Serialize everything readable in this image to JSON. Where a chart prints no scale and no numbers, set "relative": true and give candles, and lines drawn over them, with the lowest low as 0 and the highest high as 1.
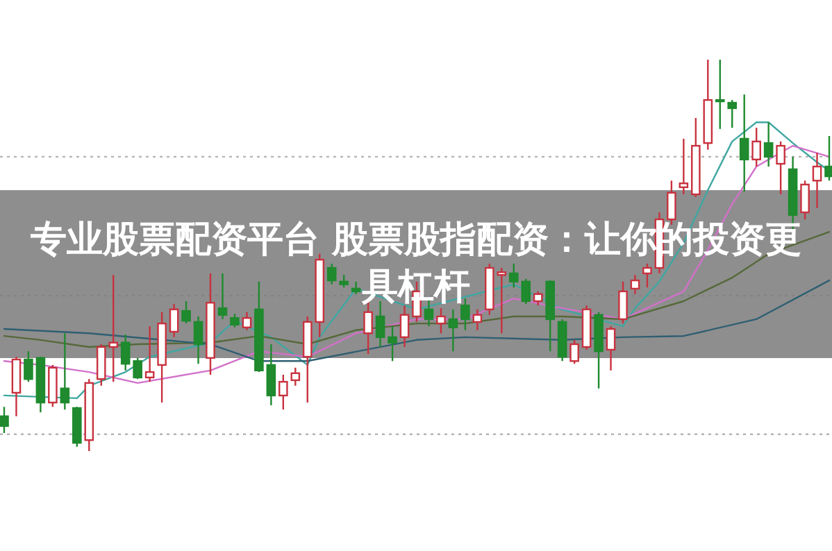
{
  "chart_data": {
    "type": "candlestick",
    "title": "专业股票配资平台 股票股指配资：让你的投资更具杠杆",
    "relative": true,
    "categories": [
      null,
      null,
      null,
      null,
      null,
      null,
      null,
      null,
      null,
      null,
      null,
      null,
      null,
      null,
      null,
      null,
      null,
      null,
      null,
      null,
      null,
      null,
      null,
      null,
      null,
      null,
      null,
      null,
      null,
      null,
      null,
      null,
      null,
      null,
      null,
      null,
      null,
      null,
      null,
      null,
      null,
      null,
      null,
      null,
      null,
      null,
      null,
      null,
      null,
      null,
      null,
      null,
      null,
      null,
      null,
      null,
      null,
      null,
      null,
      null,
      null,
      null,
      null,
      null,
      null,
      null,
      null,
      null,
      null
    ],
    "ohlc": [
      [
        0.089,
        0.113,
        0.046,
        0.064
      ],
      [
        0.149,
        0.241,
        0.089,
        0.234
      ],
      [
        0.234,
        0.255,
        0.177,
        0.184
      ],
      [
        0.238,
        0.241,
        0.099,
        0.124
      ],
      [
        0.124,
        0.22,
        0.113,
        0.213
      ],
      [
        0.16,
        0.301,
        0.106,
        0.124
      ],
      [
        0.11,
        0.113,
        0.011,
        0.021
      ],
      [
        0.028,
        0.184,
        0,
        0.174
      ],
      [
        0.184,
        0.273,
        0.167,
        0.266
      ],
      [
        0.266,
        0.45,
        0.177,
        0.277
      ],
      [
        0.277,
        0.298,
        0.206,
        0.223
      ],
      [
        0.23,
        0.238,
        0.184,
        0.188
      ],
      [
        0.188,
        0.319,
        0.177,
        0.202
      ],
      [
        0.22,
        0.355,
        0.124,
        0.326
      ],
      [
        0.305,
        0.376,
        0.291,
        0.362
      ],
      [
        0.358,
        0.383,
        0.326,
        0.333
      ],
      [
        0.33,
        0.344,
        0.223,
        0.273
      ],
      [
        0.238,
        0.454,
        0.195,
        0.379
      ],
      [
        0.365,
        0.454,
        0.337,
        0.348
      ],
      [
        0.34,
        0.351,
        0.316,
        0.323
      ],
      [
        0.316,
        0.355,
        0.309,
        0.34
      ],
      [
        0.362,
        0.433,
        0.202,
        0.206
      ],
      [
        0.22,
        0.273,
        0.117,
        0.142
      ],
      [
        0.142,
        0.195,
        0.106,
        0.177
      ],
      [
        0.181,
        0.213,
        0.167,
        0.199
      ],
      [
        0.241,
        0.344,
        0.124,
        0.33
      ],
      [
        0.33,
        0.504,
        0.291,
        0.489
      ],
      [
        0.468,
        0.479,
        0.426,
        0.436
      ],
      [
        0.433,
        0.45,
        0.418,
        0.426
      ],
      [
        0.415,
        0.433,
        0.401,
        0.408
      ],
      [
        0.301,
        0.39,
        0.248,
        0.355
      ],
      [
        0.344,
        0.383,
        0.266,
        0.291
      ],
      [
        0.291,
        0.319,
        0.23,
        0.277
      ],
      [
        0.291,
        0.372,
        0.266,
        0.348
      ],
      [
        0.344,
        0.433,
        0.33,
        0.408
      ],
      [
        0.362,
        0.39,
        0.319,
        0.337
      ],
      [
        0.326,
        0.365,
        0.301,
        0.344
      ],
      [
        0.337,
        0.362,
        0.255,
        0.316
      ],
      [
        0.372,
        0.39,
        0.309,
        0.337
      ],
      [
        0.33,
        0.362,
        0.309,
        0.348
      ],
      [
        0.362,
        0.479,
        0.348,
        0.468
      ],
      [
        0.45,
        0.468,
        0.301,
        0.457
      ],
      [
        0.454,
        0.479,
        0.418,
        0.433
      ],
      [
        0.433,
        0.44,
        0.376,
        0.383
      ],
      [
        0.383,
        0.408,
        0.372,
        0.401
      ],
      [
        0.433,
        0.436,
        0.255,
        0.337
      ],
      [
        0.33,
        0.337,
        0.23,
        0.241
      ],
      [
        0.23,
        0.284,
        0.223,
        0.273
      ],
      [
        0.266,
        0.372,
        0.259,
        0.362
      ],
      [
        0.348,
        0.355,
        0.16,
        0.255
      ],
      [
        0.259,
        0.319,
        0.206,
        0.312
      ],
      [
        0.337,
        0.433,
        0.326,
        0.408
      ],
      [
        0.415,
        0.45,
        0.401,
        0.436
      ],
      [
        0.454,
        0.479,
        0.418,
        0.468
      ],
      [
        0.468,
        0.61,
        0.454,
        0.592
      ],
      [
        0.592,
        0.691,
        0.578,
        0.66
      ],
      [
        0.674,
        0.798,
        0.656,
        0.684
      ],
      [
        0.656,
        0.851,
        0.649,
        0.78
      ],
      [
        0.787,
        1,
        0.77,
        0.897
      ],
      [
        0.897,
        1,
        0.823,
        0.894
      ],
      [
        0.89,
        0.897,
        0.826,
        0.876
      ],
      [
        0.798,
        0.911,
        0.663,
        0.745
      ],
      [
        0.745,
        0.826,
        0.727,
        0.791
      ],
      [
        0.787,
        0.84,
        0.727,
        0.752
      ],
      [
        0.734,
        0.791,
        0.656,
        0.78
      ],
      [
        0.72,
        0.752,
        0.56,
        0.603
      ],
      [
        0.61,
        0.691,
        0.592,
        0.681
      ],
      [
        0.691,
        0.762,
        0.621,
        0.727
      ],
      [
        0.727,
        0.805,
        0.691,
        0.702
      ]
    ],
    "colors": [
      "#1f8a2e",
      "#c8323f",
      "#1f8a2e",
      "#1f8a2e",
      "#c8323f",
      "#1f8a2e",
      "#1f8a2e",
      "#c8323f",
      "#c8323f",
      "#c8323f",
      "#1f8a2e",
      "#1f8a2e",
      "#c8323f",
      "#c8323f",
      "#c8323f",
      "#1f8a2e",
      "#1f8a2e",
      "#c8323f",
      "#1f8a2e",
      "#1f8a2e",
      "#c8323f",
      "#1f8a2e",
      "#1f8a2e",
      "#c8323f",
      "#c8323f",
      "#c8323f",
      "#c8323f",
      "#1f8a2e",
      "#1f8a2e",
      "#1f8a2e",
      "#c8323f",
      "#1f8a2e",
      "#1f8a2e",
      "#c8323f",
      "#c8323f",
      "#1f8a2e",
      "#c8323f",
      "#1f8a2e",
      "#1f8a2e",
      "#c8323f",
      "#c8323f",
      "#c8323f",
      "#1f8a2e",
      "#1f8a2e",
      "#c8323f",
      "#1f8a2e",
      "#1f8a2e",
      "#c8323f",
      "#c8323f",
      "#1f8a2e",
      "#c8323f",
      "#c8323f",
      "#c8323f",
      "#c8323f",
      "#c8323f",
      "#c8323f",
      "#c8323f",
      "#c8323f",
      "#c8323f",
      "#1f8a2e",
      "#1f8a2e",
      "#1f8a2e",
      "#c8323f",
      "#1f8a2e",
      "#c8323f",
      "#1f8a2e",
      "#c8323f",
      "#c8323f",
      "#1f8a2e"
    ],
    "series": [
      {
        "type": "line",
        "color": "#3fa7a2",
        "values": [
          0.142,
          null,
          null,
          null,
          null,
          null,
          0.135,
          0.167,
          null,
          null,
          0.202,
          null,
          0.241,
          null,
          null,
          null,
          null,
          0.277,
          null,
          0.333,
          null,
          null,
          0.291,
          null,
          null,
          0.22,
          0.291,
          null,
          null,
          0.415,
          null,
          null,
          null,
          null,
          0.362,
          null,
          null,
          null,
          null,
          null,
          null,
          null,
          0.426,
          null,
          null,
          null,
          0.362,
          null,
          null,
          null,
          null,
          0.319,
          0.365,
          null,
          0.433,
          null,
          0.532,
          null,
          0.667,
          null,
          0.791,
          null,
          0.84,
          0.84,
          null,
          0.787,
          null,
          0.738,
          0.716
        ]
      },
      {
        "type": "line",
        "color": "#d271c9",
        "values": [
          0.23,
          null,
          null,
          0.22,
          null,
          null,
          null,
          0.202,
          null,
          null,
          null,
          0.174,
          null,
          null,
          null,
          null,
          null,
          0.206,
          null,
          null,
          null,
          0.255,
          null,
          null,
          null,
          0.241,
          null,
          null,
          null,
          0.301,
          null,
          null,
          null,
          null,
          0.337,
          null,
          null,
          null,
          0.337,
          null,
          null,
          null,
          0.39,
          null,
          null,
          null,
          0.365,
          null,
          null,
          null,
          null,
          0.337,
          null,
          null,
          null,
          null,
          0.408,
          null,
          0.514,
          null,
          0.631,
          null,
          0.727,
          null,
          null,
          0.78,
          null,
          null,
          0.752
        ]
      },
      {
        "type": "line",
        "color": "#56693a",
        "values": [
          0.294,
          null,
          null,
          0.284,
          null,
          null,
          null,
          0.266,
          null,
          null,
          null,
          0.273,
          null,
          null,
          null,
          null,
          null,
          0.277,
          null,
          null,
          null,
          0.294,
          null,
          null,
          null,
          0.273,
          null,
          null,
          null,
          0.309,
          null,
          null,
          null,
          null,
          0.326,
          null,
          null,
          null,
          0.326,
          null,
          null,
          null,
          0.344,
          null,
          null,
          null,
          0.344,
          null,
          null,
          null,
          null,
          0.337,
          null,
          null,
          null,
          null,
          0.383,
          null,
          null,
          null,
          0.443,
          null,
          null,
          0.504,
          null,
          null,
          null,
          null,
          0.56
        ]
      },
      {
        "type": "line",
        "color": "#2f5f72",
        "values": [
          0.312,
          null,
          null,
          null,
          null,
          null,
          null,
          0.301,
          null,
          null,
          null,
          null,
          null,
          null,
          null,
          null,
          null,
          0.273,
          null,
          null,
          null,
          0.23,
          null,
          null,
          null,
          0.23,
          null,
          null,
          null,
          null,
          null,
          null,
          null,
          null,
          0.284,
          null,
          null,
          null,
          0.291,
          null,
          null,
          null,
          null,
          null,
          null,
          null,
          0.284,
          null,
          null,
          null,
          null,
          0.291,
          null,
          null,
          null,
          null,
          0.294,
          null,
          null,
          null,
          null,
          null,
          0.337,
          null,
          null,
          null,
          null,
          null,
          0.436
        ]
      }
    ],
    "ref_lines": [
      {
        "axis": "y",
        "value": 0.752,
        "color": "#b4b4b4",
        "line_style": "dotted"
      },
      {
        "axis": "y",
        "value": 0.397,
        "color": "#b4b4b4",
        "line_style": "dotted"
      },
      {
        "axis": "y",
        "value": 0.043,
        "color": "#b4b4b4",
        "line_style": "dotted"
      }
    ]
  }
}
